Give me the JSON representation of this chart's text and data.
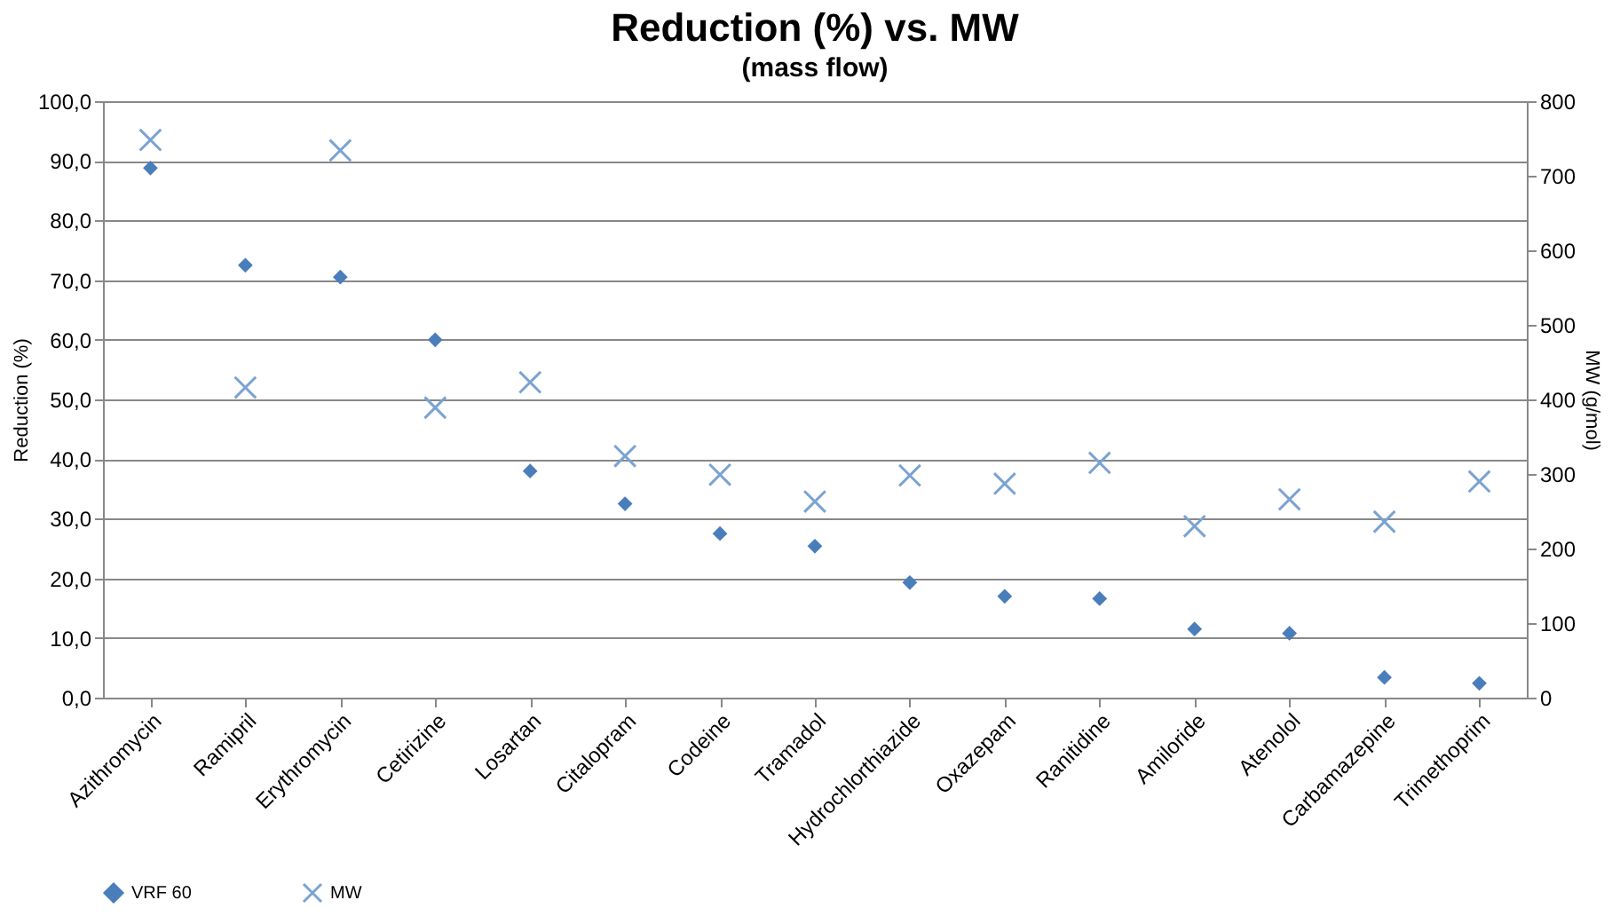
{
  "chart_data": {
    "type": "scatter",
    "title": "Reduction (%) vs. MW",
    "subtitle": "(mass flow)",
    "ylabel": "Reduction (%)",
    "y2label": "MW (g/mol)",
    "categories": [
      "Azithromycin",
      "Ramipril",
      "Erythromycin",
      "Cetirizine",
      "Losartan",
      "Citalopram",
      "Codeine",
      "Tramadol",
      "Hydrochlorthiazide",
      "Oxazepam",
      "Ranitidine",
      "Amiloride",
      "Atenolol",
      "Carbamazepine",
      "Trimethoprim"
    ],
    "series": [
      {
        "name": "VRF 60",
        "color": "#4a7ebb",
        "marker": "diamond",
        "values": [
          88.8,
          72.5,
          70.5,
          60,
          38,
          32.5,
          27.5,
          25.4,
          19.3,
          17,
          16.6,
          11.5,
          10.8,
          3.4,
          2.4
        ]
      },
      {
        "name": "MW",
        "color": "#7ba3d1",
        "marker": "cross",
        "axis": "y2",
        "values": [
          748,
          416,
          734,
          389,
          423,
          324,
          299,
          263,
          298,
          287,
          315,
          230,
          266,
          236,
          290
        ]
      }
    ],
    "ylim": [
      0,
      100
    ],
    "yticks": [
      {
        "value": 0,
        "label": "0,0"
      },
      {
        "value": 10,
        "label": "10,0"
      },
      {
        "value": 20,
        "label": "20,0"
      },
      {
        "value": 30,
        "label": "30,0"
      },
      {
        "value": 40,
        "label": "40,0"
      },
      {
        "value": 50,
        "label": "50,0"
      },
      {
        "value": 60,
        "label": "60,0"
      },
      {
        "value": 70,
        "label": "70,0"
      },
      {
        "value": 80,
        "label": "80,0"
      },
      {
        "value": 90,
        "label": "90,0"
      },
      {
        "value": 100,
        "label": "100,0"
      }
    ],
    "y2lim": [
      0,
      800
    ],
    "y2ticks": [
      0,
      100,
      200,
      300,
      400,
      500,
      600,
      700,
      800
    ],
    "grid": "y",
    "legend": "bottom"
  }
}
